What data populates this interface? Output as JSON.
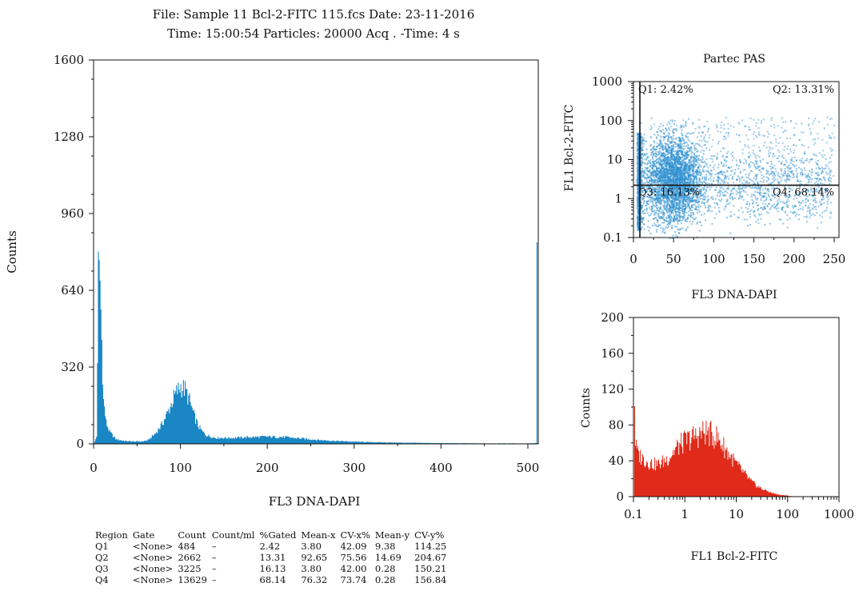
{
  "header": {
    "line1": "File: Sample 11 Bcl-2-FITC 115.fcs Date: 23-11-2016",
    "line2": "Time: 15:00:54 Particles: 20000 Acq . -Time: 4 s"
  },
  "scatter_title": "Partec PAS",
  "colors": {
    "histogram": "#1a86c4",
    "scatter": "#2e8fd0",
    "fitc_histogram": "#e02a1a",
    "axis": "#111111"
  },
  "chart_data": [
    {
      "type": "area",
      "name": "dapi-histogram",
      "xlabel": "FL3 DNA-DAPI",
      "ylabel": "Counts",
      "xlim": [
        0,
        512
      ],
      "ylim": [
        0,
        1600
      ],
      "xticks": [
        0,
        100,
        200,
        300,
        400,
        500
      ],
      "yticks": [
        0,
        320,
        640,
        960,
        1280,
        1600
      ],
      "x": [
        0,
        3,
        5,
        7,
        9,
        11,
        14,
        18,
        25,
        35,
        45,
        55,
        62,
        70,
        78,
        85,
        90,
        95,
        100,
        105,
        110,
        115,
        120,
        125,
        130,
        140,
        160,
        180,
        200,
        220,
        240,
        260,
        280,
        300,
        320,
        350,
        400,
        450,
        500,
        509,
        510,
        511
      ],
      "y": [
        0,
        30,
        710,
        680,
        430,
        180,
        90,
        50,
        20,
        12,
        10,
        10,
        15,
        40,
        80,
        130,
        175,
        215,
        240,
        225,
        180,
        120,
        75,
        50,
        35,
        25,
        25,
        28,
        30,
        28,
        22,
        16,
        12,
        9,
        7,
        5,
        3,
        2,
        2,
        3,
        840,
        3
      ]
    },
    {
      "type": "scatter",
      "name": "bcl2-vs-dapi",
      "title": "Partec PAS",
      "xlabel": "FL3 DNA-DAPI",
      "ylabel": "FL1 Bcl-2-FITC",
      "xlim": [
        0,
        256
      ],
      "ylim": [
        0.1,
        1000
      ],
      "yscale": "log",
      "xticks": [
        0,
        50,
        100,
        150,
        200,
        250
      ],
      "yticks": [
        0.1,
        1,
        10,
        100,
        1000
      ],
      "ytick_labels": [
        "0.1",
        "1",
        "10",
        "100",
        "1000"
      ],
      "quadrant_x": 8,
      "quadrant_y": 2.2,
      "quadrants": [
        {
          "label": "Q1: 2.42%",
          "pos": "top-left"
        },
        {
          "label": "Q2: 13.31%",
          "pos": "top-right"
        },
        {
          "label": "Q3: 16.13%",
          "pos": "bottom-left"
        },
        {
          "label": "Q4: 68.14%",
          "pos": "bottom-right"
        }
      ]
    },
    {
      "type": "area",
      "name": "fitc-histogram",
      "xlabel": "FL1 Bcl-2-FITC",
      "ylabel": "Counts",
      "xscale": "log",
      "xlim": [
        0.1,
        1000
      ],
      "ylim": [
        0,
        200
      ],
      "xticks": [
        0.1,
        1,
        10,
        100,
        1000
      ],
      "xtick_labels": [
        "0.1",
        "1",
        "10",
        "100",
        "1000"
      ],
      "yticks": [
        0,
        40,
        80,
        120,
        160,
        200
      ],
      "x": [
        0.1,
        0.102,
        0.105,
        0.11,
        0.12,
        0.14,
        0.17,
        0.2,
        0.25,
        0.3,
        0.4,
        0.5,
        0.7,
        1,
        1.5,
        2,
        2.5,
        3,
        4,
        5,
        7,
        10,
        15,
        20,
        30,
        50,
        70,
        100,
        150,
        200
      ],
      "y": [
        0,
        140,
        70,
        55,
        48,
        44,
        40,
        38,
        36,
        36,
        40,
        45,
        55,
        62,
        67,
        70,
        72,
        70,
        67,
        60,
        48,
        36,
        24,
        16,
        9,
        4,
        2,
        1,
        0,
        0
      ]
    }
  ],
  "stats_table": {
    "headers": [
      "Region",
      "Gate",
      "Count",
      "Count/ml",
      "%Gated",
      "Mean-x",
      "CV-x%",
      "Mean-y",
      "CV-y%"
    ],
    "rows": [
      [
        "Q1",
        "<None>",
        "484",
        "–",
        "2.42",
        "3.80",
        "42.09",
        "9.38",
        "114.25"
      ],
      [
        "Q2",
        "<None>",
        "2662",
        "–",
        "13.31",
        "92.65",
        "75.56",
        "14.69",
        "204.67"
      ],
      [
        "Q3",
        "<None>",
        "3225",
        "–",
        "16.13",
        "3.80",
        "42.00",
        "0.28",
        "150.21"
      ],
      [
        "Q4",
        "<None>",
        "13629",
        "–",
        "68.14",
        "76.32",
        "73.74",
        "0.28",
        "156.84"
      ]
    ]
  }
}
